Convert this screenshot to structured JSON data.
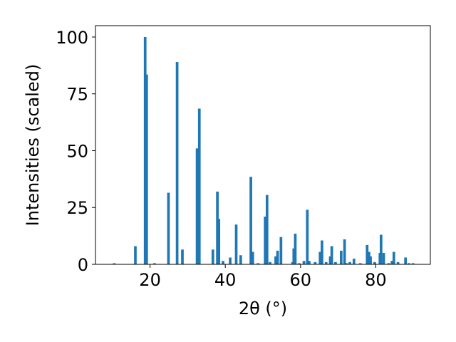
{
  "chart_data": {
    "type": "bar",
    "xlabel": "2θ (°)",
    "ylabel": "Intensities (scaled)",
    "xlim": [
      5.5,
      94.5
    ],
    "ylim": [
      0,
      105
    ],
    "xticks": [
      20,
      40,
      60,
      80
    ],
    "yticks": [
      0,
      25,
      50,
      75,
      100
    ],
    "bar_color": "#1f77b4",
    "bar_width": 0.7,
    "grid": false,
    "x": [
      10.5,
      16.1,
      18.7,
      19.1,
      21.2,
      24.9,
      27.2,
      28.6,
      32.5,
      33.1,
      36.7,
      37.9,
      38.3,
      39.4,
      41.3,
      42.9,
      44.1,
      46.8,
      47.3,
      48.7,
      50.6,
      51.1,
      51.9,
      53.4,
      53.9,
      54.8,
      57.9,
      58.2,
      58.6,
      59.6,
      60.9,
      61.8,
      62.3,
      63.9,
      65.2,
      65.7,
      66.8,
      67.9,
      68.3,
      69.3,
      70.8,
      71.7,
      72.2,
      73.1,
      74.2,
      75.9,
      77.7,
      78.2,
      78.6,
      79.7,
      81.1,
      81.4,
      82.1,
      83.4,
      84.3,
      84.8,
      85.9,
      87.9,
      88.8,
      89.9
    ],
    "values": [
      0.5,
      8,
      100,
      83.5,
      0.5,
      31.5,
      89,
      6.5,
      51,
      68.5,
      6.5,
      32,
      20,
      1.5,
      3,
      17.5,
      4,
      38.5,
      5.5,
      0.5,
      21,
      30.5,
      1,
      3.5,
      6,
      12,
      1,
      7,
      13.5,
      0.5,
      1.5,
      24,
      1.5,
      1,
      5.5,
      10.5,
      1,
      3.5,
      8,
      1,
      6,
      11,
      0.5,
      1,
      2.5,
      0.5,
      8.5,
      5.5,
      3.5,
      1,
      5,
      13,
      5,
      0.5,
      1.5,
      5.5,
      1,
      3,
      0.5,
      0.5
    ]
  }
}
